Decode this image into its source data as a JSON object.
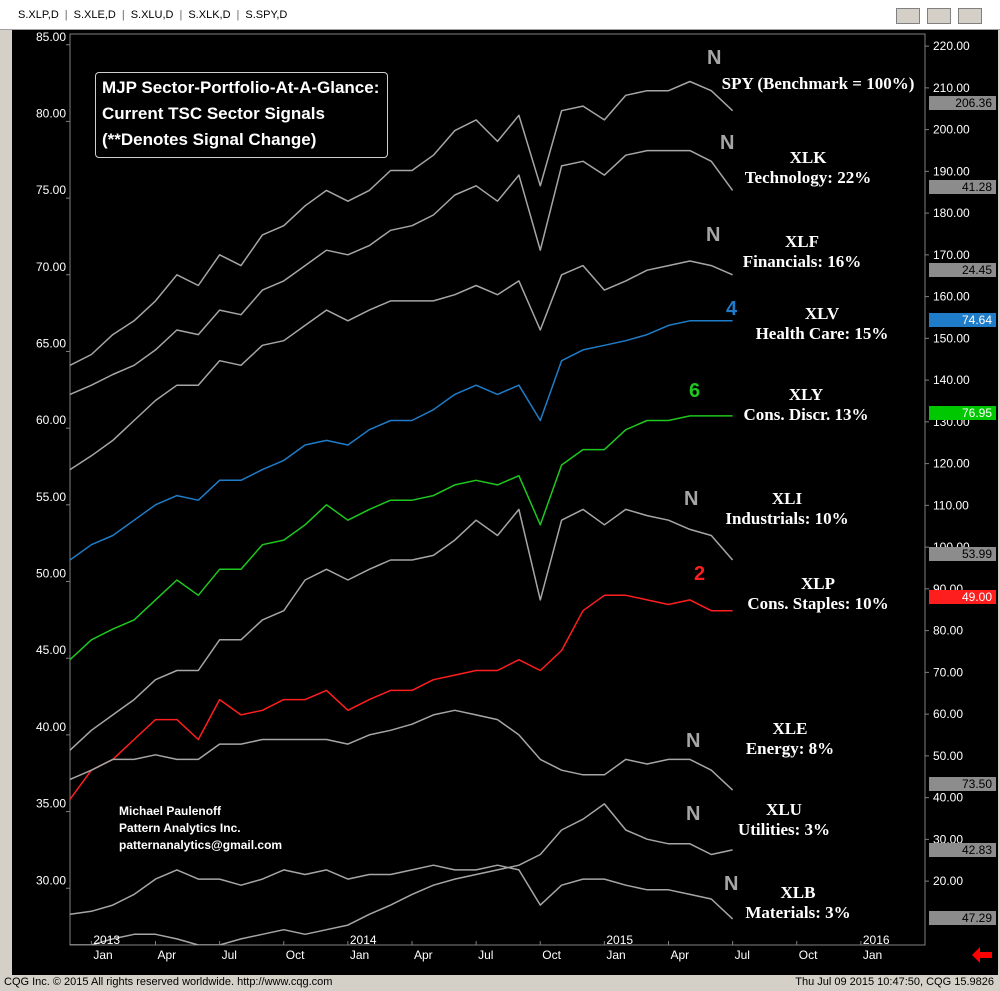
{
  "window": {
    "tabs": [
      "S.XLP,D",
      "S.XLE,D",
      "S.XLU,D",
      "S.XLK,D",
      "S.SPY,D"
    ],
    "footer_left": "CQG Inc. © 2015 All rights reserved worldwide. http://www.cqg.com",
    "footer_right": "Thu Jul 09 2015 10:47:50, CQG 15.9826"
  },
  "chart_data": {
    "type": "line",
    "title": [
      "MJP Sector-Portfolio-At-A-Glance:",
      "Current TSC Sector Signals",
      "(**Denotes Signal Change)"
    ],
    "credit": [
      "Michael Paulenoff",
      "Pattern Analytics Inc.",
      "patternanalytics@gmail.com"
    ],
    "x": [
      "2012-12",
      "2013-01",
      "2013-02",
      "2013-03",
      "2013-04",
      "2013-05",
      "2013-06",
      "2013-07",
      "2013-08",
      "2013-09",
      "2013-10",
      "2013-11",
      "2013-12",
      "2014-01",
      "2014-02",
      "2014-03",
      "2014-04",
      "2014-05",
      "2014-06",
      "2014-07",
      "2014-08",
      "2014-09",
      "2014-10",
      "2014-11",
      "2014-12",
      "2015-01",
      "2015-02",
      "2015-03",
      "2015-04",
      "2015-05",
      "2015-06",
      "2015-07"
    ],
    "xlim": [
      "2012-12",
      "2016-04"
    ],
    "xticks": [
      {
        "value": "2013-01",
        "label": "Jan"
      },
      {
        "value": "2013-04",
        "label": "Apr"
      },
      {
        "value": "2013-07",
        "label": "Jul"
      },
      {
        "value": "2013-10",
        "label": "Oct"
      },
      {
        "value": "2014-01",
        "label": "Jan"
      },
      {
        "value": "2014-04",
        "label": "Apr"
      },
      {
        "value": "2014-07",
        "label": "Jul"
      },
      {
        "value": "2014-10",
        "label": "Oct"
      },
      {
        "value": "2015-01",
        "label": "Jan"
      },
      {
        "value": "2015-04",
        "label": "Apr"
      },
      {
        "value": "2015-07",
        "label": "Jul"
      },
      {
        "value": "2015-10",
        "label": "Oct"
      },
      {
        "value": "2016-01",
        "label": "Jan"
      }
    ],
    "xtick_years": [
      {
        "value": "2013-01",
        "label": "2013"
      },
      {
        "value": "2014-01",
        "label": "2014"
      },
      {
        "value": "2015-01",
        "label": "2015"
      },
      {
        "value": "2016-01",
        "label": "2016"
      }
    ],
    "ylim": [
      26.3,
      85.7
    ],
    "yticks": [
      {
        "value": 30,
        "label": "30.00"
      },
      {
        "value": 35,
        "label": "35.00"
      },
      {
        "value": 40,
        "label": "40.00"
      },
      {
        "value": 45,
        "label": "45.00"
      },
      {
        "value": 50,
        "label": "50.00"
      },
      {
        "value": 55,
        "label": "55.00"
      },
      {
        "value": 60,
        "label": "60.00"
      },
      {
        "value": 65,
        "label": "65.00"
      },
      {
        "value": 70,
        "label": "70.00"
      },
      {
        "value": 75,
        "label": "75.00"
      },
      {
        "value": 80,
        "label": "80.00"
      },
      {
        "value": 85,
        "label": "85.00"
      }
    ],
    "y2lim": [
      4.7,
      222.9
    ],
    "y2ticks": [
      {
        "value": 20,
        "label": "20.00"
      },
      {
        "value": 30,
        "label": "30.00"
      },
      {
        "value": 40,
        "label": "40.00"
      },
      {
        "value": 50,
        "label": "50.00"
      },
      {
        "value": 60,
        "label": "60.00"
      },
      {
        "value": 70,
        "label": "70.00"
      },
      {
        "value": 80,
        "label": "80.00"
      },
      {
        "value": 90,
        "label": "90.00"
      },
      {
        "value": 100,
        "label": "100.00"
      },
      {
        "value": 110,
        "label": "110.00"
      },
      {
        "value": 120,
        "label": "120.00"
      },
      {
        "value": 130,
        "label": "130.00"
      },
      {
        "value": 140,
        "label": "140.00"
      },
      {
        "value": 150,
        "label": "150.00"
      },
      {
        "value": 160,
        "label": "160.00"
      },
      {
        "value": 170,
        "label": "170.00"
      },
      {
        "value": 180,
        "label": "180.00"
      },
      {
        "value": 190,
        "label": "190.00"
      },
      {
        "value": 200,
        "label": "200.00"
      },
      {
        "value": 210,
        "label": "210.00"
      },
      {
        "value": 220,
        "label": "220.00"
      }
    ],
    "series": [
      {
        "name": "SPY (Benchmark = 100%)",
        "signal": "N",
        "color": "#a6a6a6",
        "tag_color": "#8c8c8c",
        "last_value": 206.36,
        "last_label": "206.36",
        "values": [
          64.1,
          64.8,
          66.1,
          67.0,
          68.3,
          70.0,
          69.3,
          71.3,
          70.6,
          72.6,
          73.2,
          74.5,
          75.5,
          74.8,
          75.5,
          76.8,
          76.8,
          77.8,
          79.4,
          80.1,
          78.7,
          80.4,
          75.8,
          80.7,
          81.0,
          80.1,
          81.7,
          82.0,
          82.0,
          82.6,
          82.0,
          80.7
        ]
      },
      {
        "name": "XLK",
        "description": "Technology: 22%",
        "signal": "N",
        "color": "#a6a6a6",
        "tag_color": "#8c8c8c",
        "last_value": 41.28,
        "last_label": "41.28",
        "values": [
          62.2,
          62.8,
          63.5,
          64.1,
          65.1,
          66.4,
          66.1,
          67.7,
          67.4,
          69.0,
          69.6,
          70.6,
          71.6,
          71.3,
          71.9,
          72.9,
          73.2,
          73.9,
          75.2,
          75.8,
          74.8,
          76.5,
          71.6,
          77.1,
          77.4,
          76.5,
          77.8,
          78.1,
          78.1,
          78.1,
          77.4,
          75.5
        ]
      },
      {
        "name": "XLF",
        "description": "Financials: 16%",
        "signal": "N",
        "color": "#a6a6a6",
        "tag_color": "#8c8c8c",
        "last_value": 24.45,
        "last_label": "24.45",
        "values": [
          57.3,
          58.2,
          59.2,
          60.5,
          61.8,
          62.8,
          62.8,
          64.4,
          64.1,
          65.4,
          65.7,
          66.7,
          67.7,
          67.0,
          67.7,
          68.3,
          68.3,
          68.3,
          68.7,
          69.3,
          68.7,
          69.6,
          66.4,
          70.0,
          70.6,
          69.0,
          69.6,
          70.3,
          70.6,
          70.9,
          70.6,
          70.0
        ]
      },
      {
        "name": "XLV",
        "description": "Health Care: 15%",
        "signal": "4",
        "color": "#1f7cc8",
        "tag_color": "#1f7cc8",
        "last_value": 74.64,
        "last_label": "74.64",
        "values": [
          51.4,
          52.4,
          53.0,
          54.0,
          55.0,
          55.6,
          55.3,
          56.6,
          56.6,
          57.3,
          57.9,
          58.9,
          59.2,
          58.9,
          59.9,
          60.5,
          60.5,
          61.2,
          62.2,
          62.8,
          62.2,
          62.8,
          60.5,
          64.4,
          65.1,
          65.4,
          65.7,
          66.1,
          66.7,
          67.0,
          67.0,
          67.0
        ]
      },
      {
        "name": "XLY",
        "description": "Cons. Discr. 13%",
        "signal": "6",
        "color": "#1ec81e",
        "tag_color": "#00c800",
        "last_value": 76.95,
        "last_label": "76.95",
        "values": [
          44.9,
          46.2,
          46.9,
          47.5,
          48.8,
          50.1,
          49.1,
          50.8,
          50.8,
          52.4,
          52.7,
          53.7,
          55.0,
          54.0,
          54.7,
          55.3,
          55.3,
          55.6,
          56.3,
          56.6,
          56.3,
          56.9,
          53.7,
          57.6,
          58.6,
          58.6,
          59.9,
          60.5,
          60.5,
          60.8,
          60.8,
          60.8
        ]
      },
      {
        "name": "XLI",
        "description": "Industrials: 10%",
        "signal": "N",
        "color": "#a6a6a6",
        "tag_color": "#8c8c8c",
        "last_value": 53.99,
        "last_label": "53.99",
        "values": [
          39.0,
          40.3,
          41.3,
          42.3,
          43.6,
          44.2,
          44.2,
          46.2,
          46.2,
          47.5,
          48.1,
          50.1,
          50.8,
          50.1,
          50.8,
          51.4,
          51.4,
          51.7,
          52.7,
          54.0,
          53.0,
          54.7,
          48.8,
          54.0,
          54.7,
          53.7,
          54.7,
          54.3,
          54.0,
          53.4,
          53.0,
          51.4
        ]
      },
      {
        "name": "XLP",
        "description": "Cons. Staples: 10%",
        "signal": "2",
        "color": "#ff1e1e",
        "tag_color": "#ff1e1e",
        "last_value": 49.0,
        "last_label": "49.00",
        "values": [
          35.8,
          37.7,
          38.4,
          39.7,
          41.0,
          41.0,
          39.7,
          42.3,
          41.3,
          41.6,
          42.3,
          42.3,
          42.9,
          41.6,
          42.3,
          42.9,
          42.9,
          43.6,
          43.9,
          44.2,
          44.2,
          44.9,
          44.2,
          45.5,
          48.1,
          49.1,
          49.1,
          48.8,
          48.5,
          48.8,
          48.1,
          48.1
        ]
      },
      {
        "name": "XLE",
        "description": "Energy: 8%",
        "signal": "N",
        "color": "#a6a6a6",
        "tag_color": "#8c8c8c",
        "last_value": 73.5,
        "last_label": "73.50",
        "values": [
          37.1,
          37.7,
          38.4,
          38.4,
          38.7,
          38.4,
          38.4,
          39.4,
          39.4,
          39.7,
          39.7,
          39.7,
          39.7,
          39.4,
          40.0,
          40.3,
          40.7,
          41.3,
          41.6,
          41.3,
          41.0,
          40.0,
          38.4,
          37.7,
          37.4,
          37.4,
          38.4,
          38.1,
          38.4,
          38.4,
          37.7,
          36.4
        ]
      },
      {
        "name": "XLU",
        "description": "Utilities: 3%",
        "signal": "N",
        "color": "#a6a6a6",
        "tag_color": "#8c8c8c",
        "last_value": 42.83,
        "last_label": "42.83",
        "values": [
          26.3,
          26.3,
          26.7,
          27.0,
          27.0,
          26.7,
          26.3,
          26.3,
          26.7,
          27.0,
          27.3,
          27.0,
          27.3,
          27.6,
          28.3,
          28.9,
          29.6,
          30.2,
          30.6,
          30.9,
          31.2,
          31.5,
          32.2,
          33.8,
          34.5,
          35.5,
          33.8,
          33.2,
          32.9,
          32.9,
          32.2,
          32.5
        ]
      },
      {
        "name": "XLB",
        "description": "Materials: 3%",
        "signal": "N",
        "color": "#a6a6a6",
        "tag_color": "#8c8c8c",
        "last_value": 47.29,
        "last_label": "47.29",
        "values": [
          28.3,
          28.5,
          28.9,
          29.6,
          30.6,
          31.2,
          30.6,
          30.6,
          30.2,
          30.6,
          31.2,
          30.9,
          31.2,
          30.6,
          30.9,
          30.9,
          31.2,
          31.5,
          31.2,
          31.2,
          31.5,
          31.2,
          28.9,
          30.2,
          30.6,
          30.6,
          30.2,
          29.9,
          29.9,
          29.6,
          29.3,
          28.0
        ]
      }
    ]
  }
}
